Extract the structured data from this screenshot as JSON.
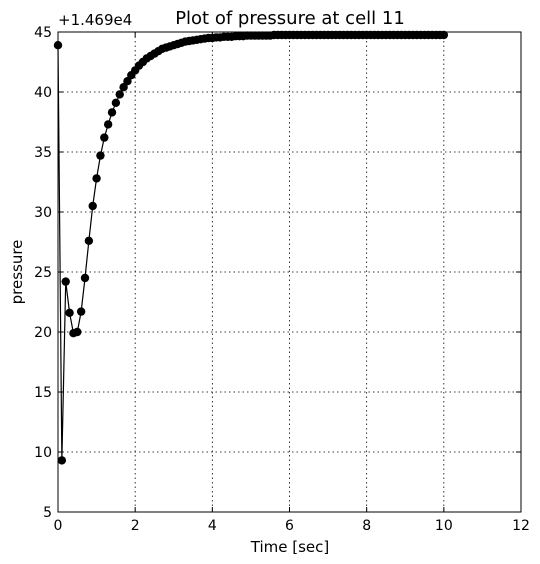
{
  "chart_data": {
    "type": "line",
    "title": "Plot of pressure at cell 11",
    "xlabel": "Time [sec]",
    "ylabel": "pressure",
    "offset_text": "+1.469e4",
    "xlim": [
      0,
      12
    ],
    "ylim": [
      5,
      45
    ],
    "xticks": [
      0,
      2,
      4,
      6,
      8,
      10,
      12
    ],
    "yticks": [
      5,
      10,
      15,
      20,
      25,
      30,
      35,
      40,
      45
    ],
    "grid": true,
    "series": [
      {
        "color": "#000000",
        "marker": "circle",
        "x": [
          0.0,
          0.1,
          0.2,
          0.3,
          0.4,
          0.5,
          0.6,
          0.7,
          0.8,
          0.9,
          1.0,
          1.1,
          1.2,
          1.3,
          1.4,
          1.5,
          1.6,
          1.7,
          1.8,
          1.9,
          2.0,
          2.1,
          2.2,
          2.3,
          2.4,
          2.5,
          2.6,
          2.7,
          2.8,
          2.9,
          3.0,
          3.1,
          3.2,
          3.3,
          3.4,
          3.5,
          3.6,
          3.7,
          3.8,
          3.9,
          4.0,
          4.1,
          4.2,
          4.3,
          4.4,
          4.5,
          4.6,
          4.7,
          4.8,
          4.9,
          5.0,
          5.1,
          5.2,
          5.3,
          5.4,
          5.5,
          5.6,
          5.7,
          5.8,
          5.9,
          6.0,
          6.1,
          6.2,
          6.3,
          6.4,
          6.5,
          6.6,
          6.7,
          6.8,
          6.9,
          7.0,
          7.1,
          7.2,
          7.3,
          7.4,
          7.5,
          7.6,
          7.7,
          7.8,
          7.9,
          8.0,
          8.1,
          8.2,
          8.3,
          8.4,
          8.5,
          8.6,
          8.7,
          8.8,
          8.9,
          9.0,
          9.1,
          9.2,
          9.3,
          9.4,
          9.5,
          9.6,
          9.7,
          9.8,
          9.9,
          10.0
        ],
        "y": [
          43.9,
          9.3,
          24.2,
          21.6,
          19.9,
          20.0,
          21.7,
          24.5,
          27.6,
          30.5,
          32.8,
          34.7,
          36.2,
          37.3,
          38.3,
          39.1,
          39.8,
          40.4,
          40.9,
          41.4,
          41.8,
          42.2,
          42.5,
          42.8,
          43.0,
          43.2,
          43.4,
          43.6,
          43.7,
          43.8,
          43.9,
          44.0,
          44.1,
          44.2,
          44.25,
          44.3,
          44.35,
          44.4,
          44.45,
          44.5,
          44.5,
          44.55,
          44.55,
          44.6,
          44.6,
          44.6,
          44.65,
          44.65,
          44.65,
          44.7,
          44.7,
          44.7,
          44.7,
          44.7,
          44.7,
          44.7,
          44.75,
          44.75,
          44.75,
          44.75,
          44.75,
          44.75,
          44.75,
          44.75,
          44.75,
          44.75,
          44.75,
          44.75,
          44.75,
          44.75,
          44.75,
          44.75,
          44.75,
          44.75,
          44.75,
          44.75,
          44.75,
          44.75,
          44.75,
          44.75,
          44.75,
          44.75,
          44.75,
          44.75,
          44.75,
          44.75,
          44.75,
          44.75,
          44.75,
          44.75,
          44.75,
          44.75,
          44.75,
          44.75,
          44.75,
          44.75,
          44.75,
          44.75,
          44.75,
          44.75,
          44.75
        ]
      }
    ]
  }
}
